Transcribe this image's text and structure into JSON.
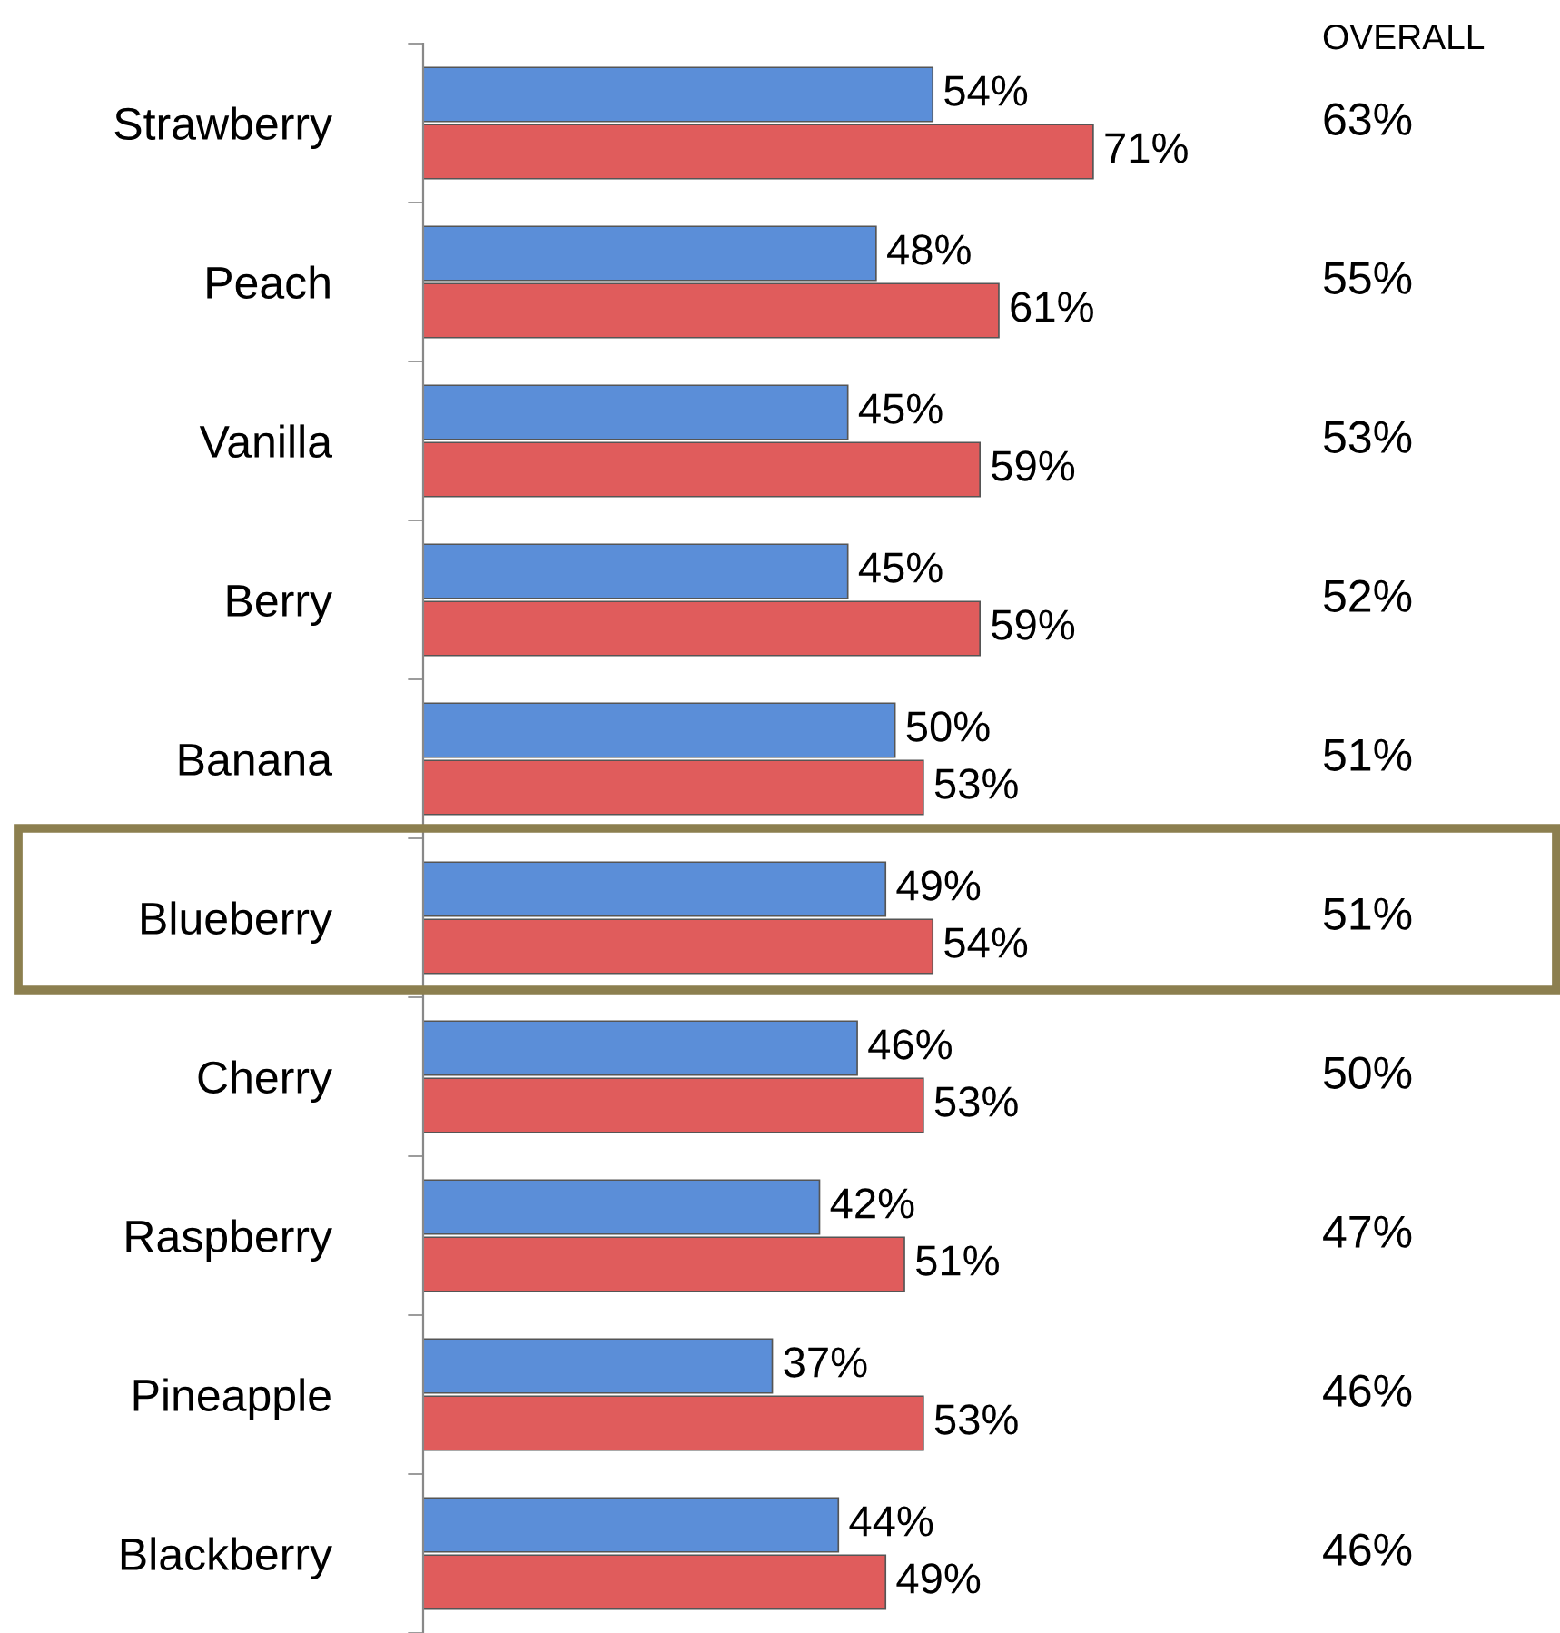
{
  "chart_data": {
    "type": "bar",
    "orientation": "horizontal",
    "categories": [
      "Strawberry",
      "Peach",
      "Vanilla",
      "Berry",
      "Banana",
      "Blueberry",
      "Cherry",
      "Raspberry",
      "Pineapple",
      "Blackberry"
    ],
    "series": [
      {
        "color": "#5b8ed8",
        "values": [
          54,
          48,
          45,
          45,
          50,
          49,
          46,
          42,
          37,
          44
        ],
        "value_labels": [
          "54%",
          "48%",
          "45%",
          "45%",
          "50%",
          "49%",
          "46%",
          "42%",
          "37%",
          "44%"
        ]
      },
      {
        "color": "#e05c5c",
        "values": [
          71,
          61,
          59,
          59,
          53,
          54,
          53,
          51,
          53,
          49
        ],
        "value_labels": [
          "71%",
          "61%",
          "59%",
          "59%",
          "53%",
          "54%",
          "53%",
          "51%",
          "53%",
          "49%"
        ]
      }
    ],
    "annotations": [
      "OVERALL",
      "63%",
      "55%",
      "53%",
      "52%",
      "51%",
      "51%",
      "50%",
      "47%",
      "46%",
      "46%"
    ],
    "grid": false,
    "legend": false
  }
}
